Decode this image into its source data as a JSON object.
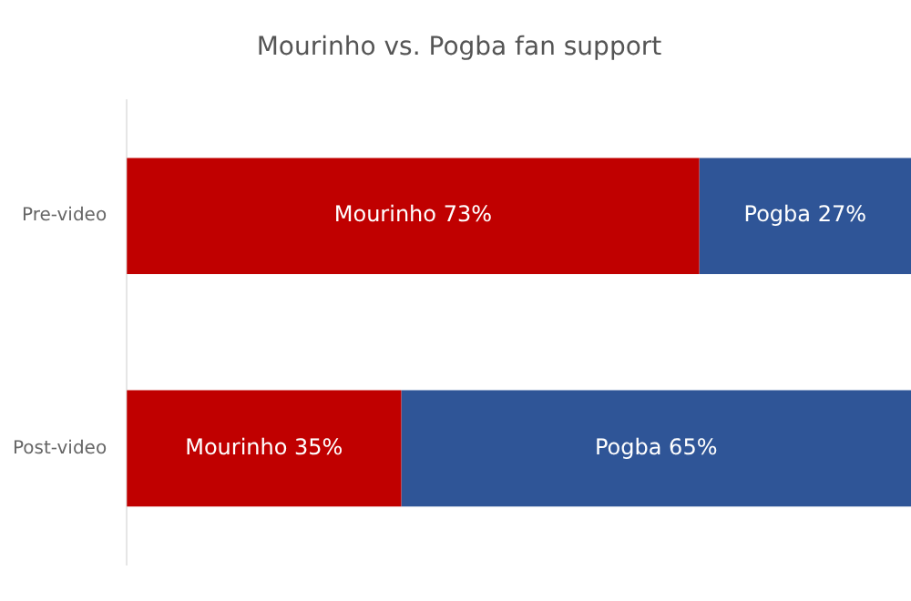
{
  "chart_data": {
    "type": "bar",
    "orientation": "horizontal",
    "stacked": true,
    "title": "Mourinho vs. Pogba fan support",
    "categories": [
      "Pre-video",
      "Post-video"
    ],
    "series": [
      {
        "name": "Mourinho",
        "color": "#c00000",
        "values": [
          73,
          35
        ],
        "value_labels": [
          "73%",
          "35%"
        ]
      },
      {
        "name": "Pogba",
        "color": "#2f5597",
        "values": [
          27,
          65
        ],
        "value_labels": [
          "27%",
          "65%"
        ]
      }
    ],
    "legend": false,
    "tick_labels": "y"
  }
}
